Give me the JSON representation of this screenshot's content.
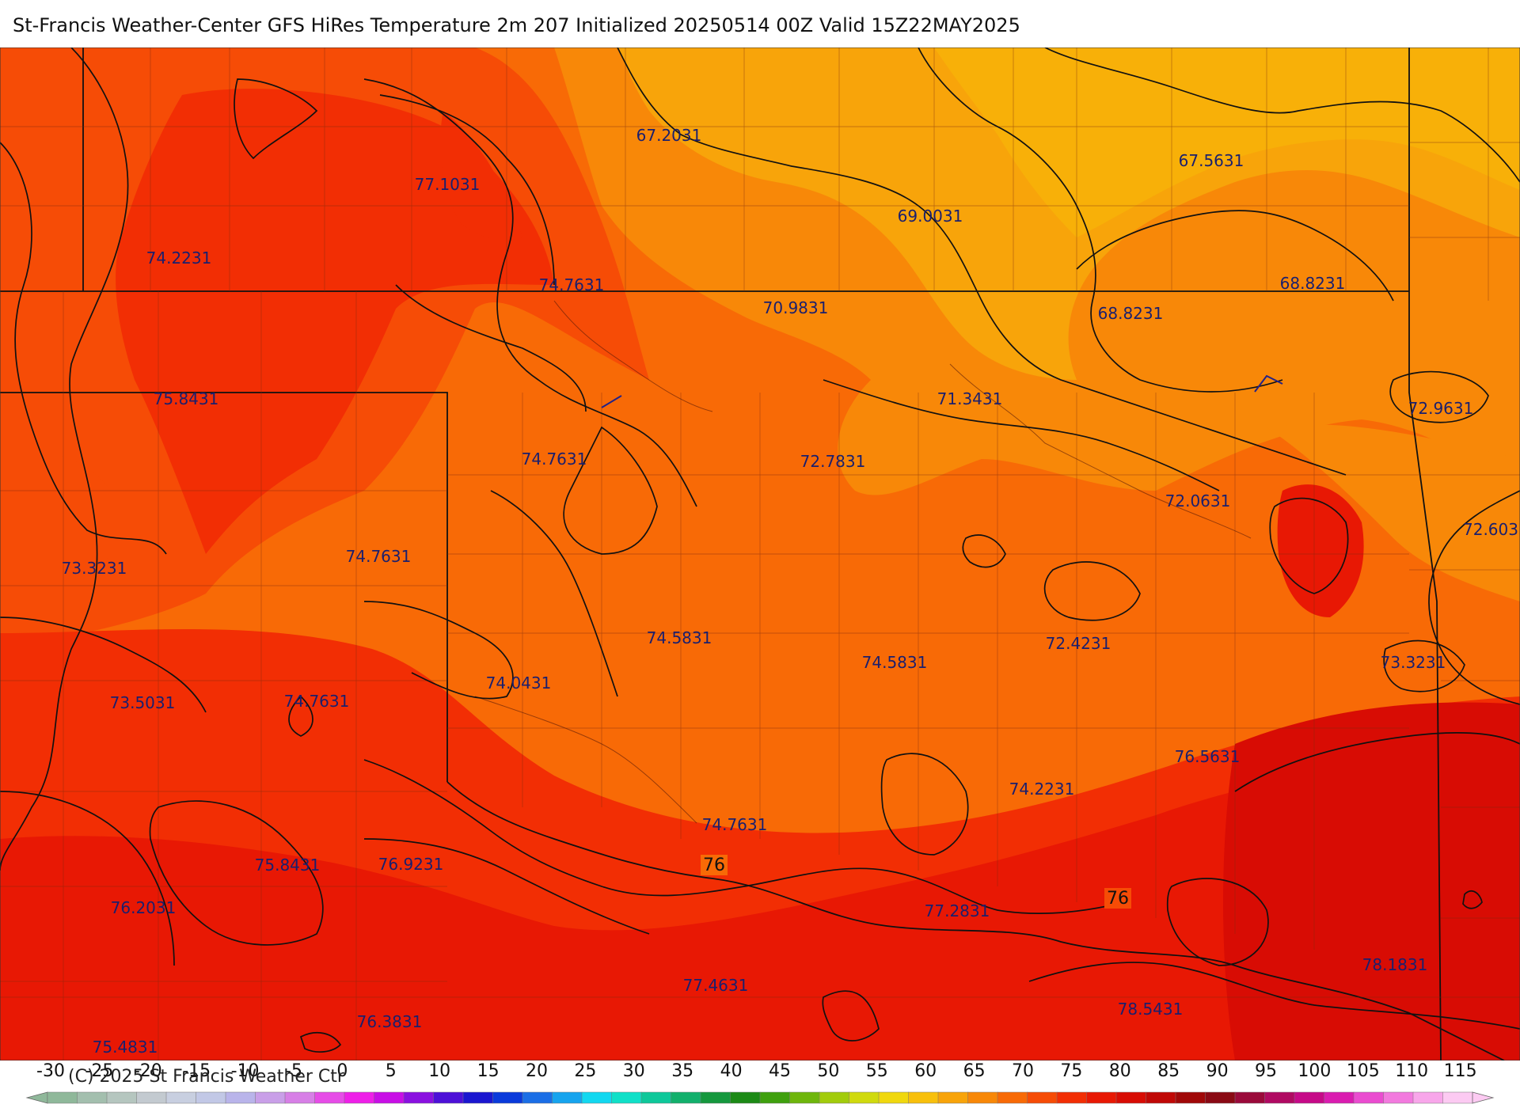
{
  "header": {
    "title": "St-Francis Weather-Center GFS HiRes Temperature 2m  207 Initialized 20250514 00Z Valid 15Z22MAY2025"
  },
  "map": {
    "labels": [
      {
        "id": "l1",
        "text": "67.2031"
      },
      {
        "id": "l2",
        "text": "67.5631"
      },
      {
        "id": "l3",
        "text": "77.1031"
      },
      {
        "id": "l4",
        "text": "69.0031"
      },
      {
        "id": "l5",
        "text": "74.2231"
      },
      {
        "id": "l6",
        "text": "74.7631"
      },
      {
        "id": "l7",
        "text": "68.8231"
      },
      {
        "id": "l8",
        "text": "70.9831"
      },
      {
        "id": "l9",
        "text": "68.8231"
      },
      {
        "id": "l10",
        "text": "75.8431"
      },
      {
        "id": "l11",
        "text": "71.3431"
      },
      {
        "id": "l12",
        "text": "72.9631"
      },
      {
        "id": "l13",
        "text": "74.7631"
      },
      {
        "id": "l14",
        "text": "72.7831"
      },
      {
        "id": "l15",
        "text": "72.0631"
      },
      {
        "id": "l16",
        "text": "72.603"
      },
      {
        "id": "l17",
        "text": "73.3231"
      },
      {
        "id": "l18",
        "text": "74.7631"
      },
      {
        "id": "l19",
        "text": "74.5831"
      },
      {
        "id": "l20",
        "text": "72.4231"
      },
      {
        "id": "l21",
        "text": "74.5831"
      },
      {
        "id": "l22",
        "text": "73.3231"
      },
      {
        "id": "l23",
        "text": "74.0431"
      },
      {
        "id": "l24",
        "text": "73.5031"
      },
      {
        "id": "l25",
        "text": "74.7631"
      },
      {
        "id": "l26",
        "text": "76.5631"
      },
      {
        "id": "l27",
        "text": "74.2231"
      },
      {
        "id": "l28",
        "text": "74.7631"
      },
      {
        "id": "l29",
        "text": "75.8431"
      },
      {
        "id": "l30",
        "text": "76.9231"
      },
      {
        "id": "l31",
        "text": "76.2031"
      },
      {
        "id": "l32",
        "text": "77.2831"
      },
      {
        "id": "l33",
        "text": "78.1831"
      },
      {
        "id": "l34",
        "text": "77.4631"
      },
      {
        "id": "l35",
        "text": "76.3831"
      },
      {
        "id": "l36",
        "text": "75.4831"
      },
      {
        "id": "l37",
        "text": "78.5431"
      }
    ],
    "contour_labels": [
      {
        "id": "c1",
        "text": "76"
      },
      {
        "id": "c2",
        "text": "76"
      }
    ]
  },
  "color_scale": {
    "ticks": [
      "-30",
      "-25",
      "-20",
      "-15",
      "-10",
      "-5",
      "0",
      "5",
      "10",
      "15",
      "20",
      "25",
      "30",
      "35",
      "40",
      "45",
      "50",
      "55",
      "60",
      "65",
      "70",
      "75",
      "80",
      "85",
      "90",
      "95",
      "100",
      "105",
      "110",
      "115"
    ],
    "colors": [
      "#8fb89a",
      "#a3bfae",
      "#b5c6bf",
      "#c3cad0",
      "#c8cfe0",
      "#c2c8e6",
      "#b9b4ea",
      "#c99fe8",
      "#d77fe6",
      "#e64ce7",
      "#ee1fe8",
      "#c80ee6",
      "#8a10e0",
      "#4d10d8",
      "#1a16d0",
      "#0a3adb",
      "#1a6ee6",
      "#16a4ee",
      "#12d8f0",
      "#10e0c8",
      "#0ec89a",
      "#12b06c",
      "#15983e",
      "#1c8a16",
      "#3fa00e",
      "#6eb60c",
      "#a2cc0c",
      "#d0da0e",
      "#f0d80e",
      "#f8c00c",
      "#f8a40a",
      "#f88808",
      "#f86a06",
      "#f64c06",
      "#f22e04",
      "#e81804",
      "#d80c04",
      "#c00806",
      "#a00808",
      "#8a0a14",
      "#9a0a3a",
      "#b00a62",
      "#c60a88",
      "#da1cb0",
      "#ea4cd0",
      "#f27ade",
      "#f8a6ea",
      "#fccaf2"
    ],
    "copyright": "(C) 2025 St Francis Weather Ctr"
  }
}
